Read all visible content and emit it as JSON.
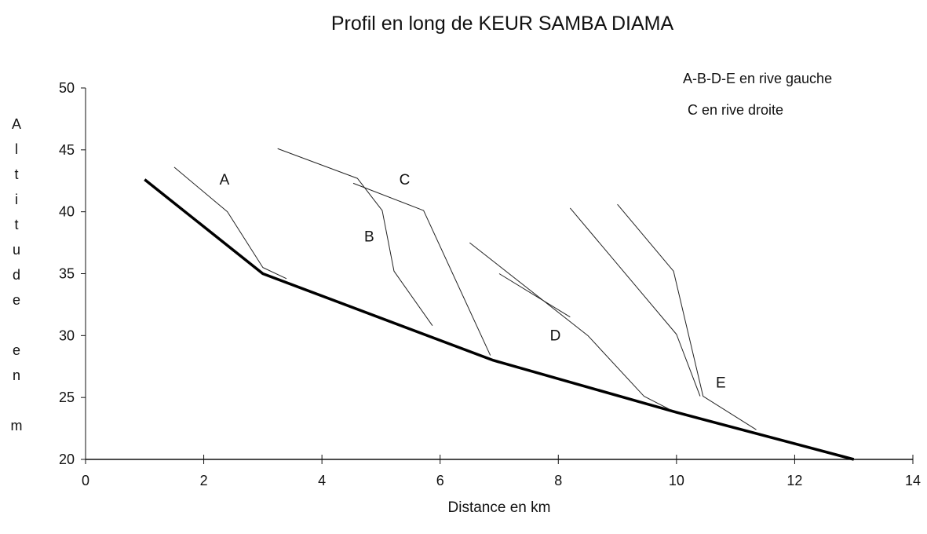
{
  "chart_data": {
    "type": "line",
    "title": "Profil en long de KEUR SAMBA DIAMA",
    "xlabel": "Distance en km",
    "ylabel": "Altitude en m",
    "xlim": [
      0,
      14
    ],
    "ylim": [
      20,
      50
    ],
    "xticks": [
      0,
      2,
      4,
      6,
      8,
      10,
      12,
      14
    ],
    "yticks": [
      20,
      25,
      30,
      35,
      40,
      45,
      50
    ],
    "grid": false,
    "notes": [
      "A-B-D-E en rive gauche",
      "C en rive droite"
    ],
    "series": [
      {
        "color": "#000000",
        "width": 3.5,
        "x": [
          1,
          3,
          6.9,
          10,
          13
        ],
        "values": [
          42.6,
          35,
          28,
          23.8,
          20
        ]
      },
      {
        "name": "A",
        "color": "#222222",
        "width": 1,
        "x": [
          1.5,
          2.4,
          3,
          3.4
        ],
        "values": [
          43.6,
          40,
          35.5,
          34.6
        ]
      },
      {
        "name": "B",
        "color": "#222222",
        "width": 1,
        "x": [
          3.25,
          4.6,
          5.02,
          5.22,
          5.87
        ],
        "values": [
          45.1,
          42.7,
          40.1,
          35.2,
          30.8
        ]
      },
      {
        "name": "C",
        "color": "#222222",
        "width": 1,
        "x": [
          4.53,
          5.72,
          6.85
        ],
        "values": [
          42.3,
          40.1,
          28.4
        ]
      },
      {
        "name": "D",
        "color": "#222222",
        "width": 1,
        "x": [
          6.5,
          8.5,
          9.45,
          9.9
        ],
        "values": [
          37.5,
          30,
          25.1,
          24
        ]
      },
      {
        "color": "#222222",
        "width": 1,
        "x": [
          7,
          8.2
        ],
        "values": [
          35,
          31.5
        ]
      },
      {
        "color": "#222222",
        "width": 1,
        "x": [
          8.2,
          10,
          10.4
        ],
        "values": [
          40.3,
          30.1,
          25.1
        ]
      },
      {
        "name": "E",
        "color": "#222222",
        "width": 1,
        "x": [
          9,
          9.95,
          10.45,
          11.35
        ],
        "values": [
          40.6,
          35.2,
          25.1,
          22.4
        ]
      }
    ],
    "annotations": [
      {
        "text": "A",
        "x": 2.35,
        "y": 42.2
      },
      {
        "text": "B",
        "x": 4.8,
        "y": 37.6
      },
      {
        "text": "C",
        "x": 5.4,
        "y": 42.2
      },
      {
        "text": "D",
        "x": 7.95,
        "y": 29.6
      },
      {
        "text": "E",
        "x": 10.75,
        "y": 25.8
      }
    ]
  }
}
